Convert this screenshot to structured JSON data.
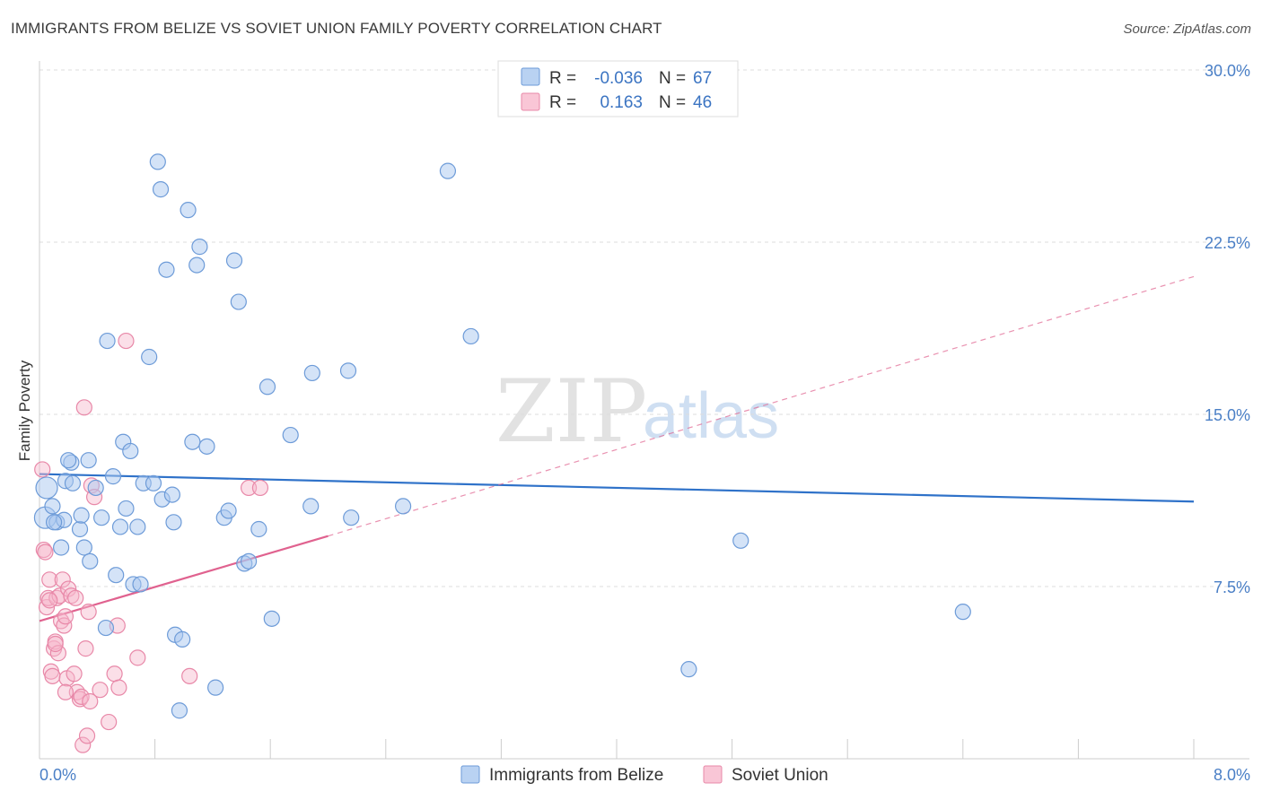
{
  "title": "IMMIGRANTS FROM BELIZE VS SOVIET UNION FAMILY POVERTY CORRELATION CHART",
  "source": "Source: ZipAtlas.com",
  "colors": {
    "belize": "#a9c8ef",
    "belize_stroke": "#6d9bd8",
    "belize_line": "#2f72c9",
    "soviet": "#f6b9cc",
    "soviet_stroke": "#e888a8",
    "soviet_line": "#e0628f"
  },
  "legend_top": {
    "rows": [
      {
        "r_label": "R =",
        "r_value": "-0.036",
        "n_label": "N =",
        "n_value": "67"
      },
      {
        "r_label": "R =",
        "r_value": "0.163",
        "n_label": "N =",
        "n_value": "46"
      }
    ]
  },
  "watermark": {
    "zip": "ZIP",
    "atlas": "atlas"
  },
  "chart_data": {
    "type": "scatter",
    "ylabel": "Family Poverty",
    "xlim": [
      0,
      8
    ],
    "ylim": [
      0,
      30
    ],
    "x_tick_labels": [
      "0.0%",
      "8.0%"
    ],
    "y_tick_labels": [
      "7.5%",
      "15.0%",
      "22.5%",
      "30.0%"
    ],
    "y_ticks": [
      7.5,
      15,
      22.5,
      30
    ],
    "series": [
      {
        "name": "Immigrants from Belize",
        "points": [
          [
            0.04,
            10.5
          ],
          [
            0.05,
            11.8
          ],
          [
            0.09,
            11
          ],
          [
            0.12,
            10.3
          ],
          [
            0.15,
            9.2
          ],
          [
            0.17,
            10.4
          ],
          [
            0.18,
            12.1
          ],
          [
            0.22,
            12.9
          ],
          [
            0.23,
            12
          ],
          [
            0.28,
            10
          ],
          [
            0.29,
            10.6
          ],
          [
            0.31,
            9.2
          ],
          [
            0.34,
            13
          ],
          [
            0.35,
            8.6
          ],
          [
            0.39,
            11.8
          ],
          [
            0.43,
            10.5
          ],
          [
            0.46,
            5.7
          ],
          [
            0.47,
            18.2
          ],
          [
            0.51,
            12.3
          ],
          [
            0.53,
            8
          ],
          [
            0.56,
            10.1
          ],
          [
            0.58,
            13.8
          ],
          [
            0.6,
            10.9
          ],
          [
            0.63,
            13.4
          ],
          [
            0.65,
            7.6
          ],
          [
            0.68,
            10.1
          ],
          [
            0.7,
            7.6
          ],
          [
            0.72,
            12
          ],
          [
            0.76,
            17.5
          ],
          [
            0.79,
            12
          ],
          [
            0.82,
            26
          ],
          [
            0.84,
            24.8
          ],
          [
            0.85,
            11.3
          ],
          [
            0.88,
            21.3
          ],
          [
            0.92,
            11.5
          ],
          [
            0.93,
            10.3
          ],
          [
            0.94,
            5.4
          ],
          [
            0.97,
            2.1
          ],
          [
            0.99,
            5.2
          ],
          [
            1.03,
            23.9
          ],
          [
            1.06,
            13.8
          ],
          [
            1.09,
            21.5
          ],
          [
            1.11,
            22.3
          ],
          [
            1.16,
            13.6
          ],
          [
            1.22,
            3.1
          ],
          [
            1.28,
            10.5
          ],
          [
            1.31,
            10.8
          ],
          [
            1.35,
            21.7
          ],
          [
            1.38,
            19.9
          ],
          [
            1.42,
            8.5
          ],
          [
            1.45,
            8.6
          ],
          [
            1.52,
            10
          ],
          [
            1.58,
            16.2
          ],
          [
            1.61,
            6.1
          ],
          [
            1.74,
            14.1
          ],
          [
            1.88,
            11
          ],
          [
            1.89,
            16.8
          ],
          [
            2.14,
            16.9
          ],
          [
            2.16,
            10.5
          ],
          [
            2.52,
            11
          ],
          [
            2.83,
            25.6
          ],
          [
            2.99,
            18.4
          ],
          [
            4.86,
            9.5
          ],
          [
            4.5,
            3.9
          ],
          [
            6.4,
            6.4
          ],
          [
            0.2,
            13
          ],
          [
            0.1,
            10.3
          ]
        ],
        "trend": {
          "x": [
            0,
            8
          ],
          "y": [
            12.4,
            11.2
          ]
        }
      },
      {
        "name": "Soviet Union",
        "points": [
          [
            0.02,
            12.6
          ],
          [
            0.03,
            9.1
          ],
          [
            0.04,
            9.0
          ],
          [
            0.05,
            6.6
          ],
          [
            0.06,
            7.0
          ],
          [
            0.07,
            7.8
          ],
          [
            0.08,
            3.8
          ],
          [
            0.09,
            3.6
          ],
          [
            0.1,
            4.8
          ],
          [
            0.11,
            5.1
          ],
          [
            0.12,
            7.0
          ],
          [
            0.13,
            4.6
          ],
          [
            0.14,
            7.1
          ],
          [
            0.15,
            6.0
          ],
          [
            0.16,
            7.8
          ],
          [
            0.17,
            5.8
          ],
          [
            0.18,
            6.2
          ],
          [
            0.19,
            3.5
          ],
          [
            0.2,
            7.4
          ],
          [
            0.22,
            7.1
          ],
          [
            0.24,
            3.7
          ],
          [
            0.26,
            2.9
          ],
          [
            0.28,
            2.6
          ],
          [
            0.29,
            2.7
          ],
          [
            0.3,
            0.6
          ],
          [
            0.31,
            15.3
          ],
          [
            0.32,
            4.8
          ],
          [
            0.33,
            1.0
          ],
          [
            0.34,
            6.4
          ],
          [
            0.35,
            2.5
          ],
          [
            0.36,
            11.9
          ],
          [
            0.38,
            11.4
          ],
          [
            0.42,
            3.0
          ],
          [
            0.48,
            1.6
          ],
          [
            0.52,
            3.7
          ],
          [
            0.54,
            5.8
          ],
          [
            0.55,
            3.1
          ],
          [
            0.6,
            18.2
          ],
          [
            0.68,
            4.4
          ],
          [
            1.04,
            3.6
          ],
          [
            1.45,
            11.8
          ],
          [
            1.53,
            11.8
          ],
          [
            0.07,
            6.9
          ],
          [
            0.11,
            5.0
          ],
          [
            0.25,
            7.0
          ],
          [
            0.18,
            2.9
          ]
        ],
        "trend_solid": {
          "x": [
            0,
            2.0
          ],
          "y": [
            6.0,
            9.7
          ]
        },
        "trend_dashed": {
          "x": [
            2.0,
            8
          ],
          "y": [
            9.7,
            21.0
          ]
        }
      }
    ]
  },
  "legend_bottom": {
    "items": [
      "Immigrants from Belize",
      "Soviet Union"
    ]
  }
}
